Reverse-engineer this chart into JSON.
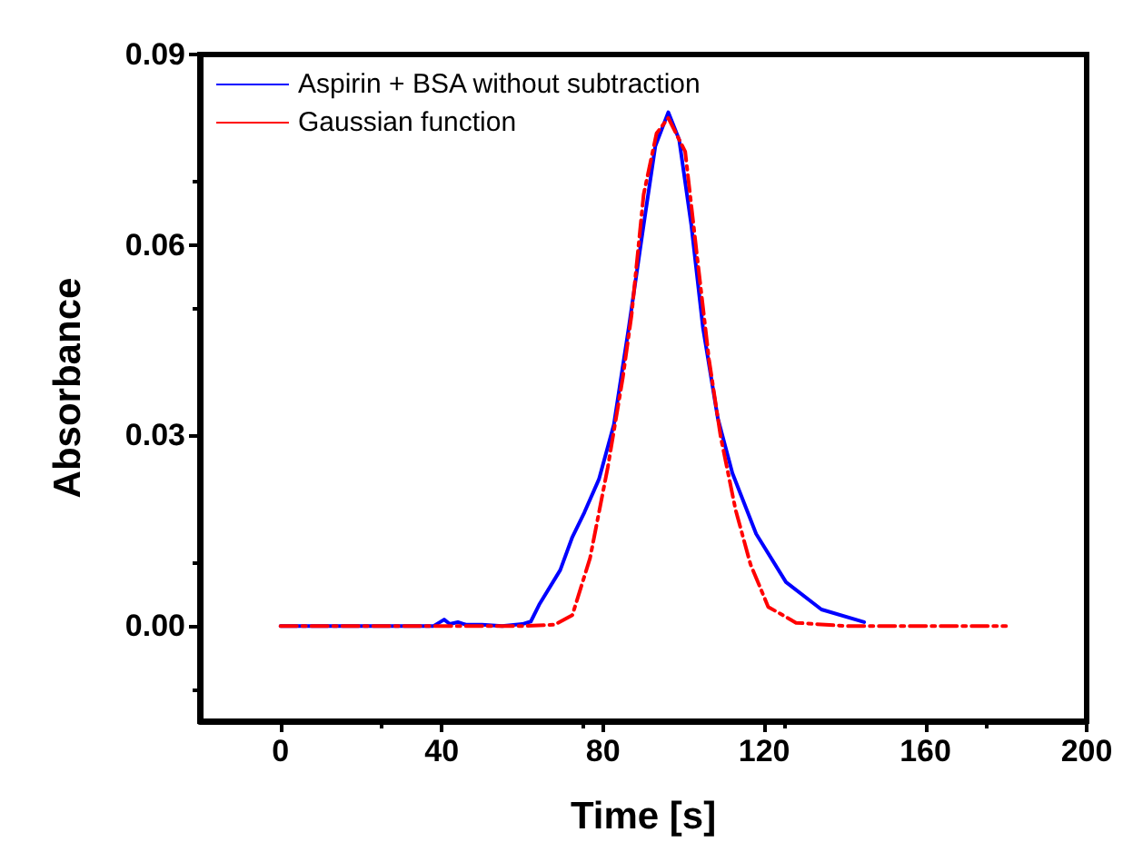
{
  "chart_data": {
    "type": "line",
    "xlabel": "Time [s]",
    "ylabel": "Absorbance",
    "xlim": [
      -20,
      200
    ],
    "xticks": [
      0,
      40,
      80,
      120,
      160,
      200
    ],
    "ylim": [
      -0.015,
      0.09
    ],
    "yticks": [
      {
        "value": 0,
        "label": "0.00"
      },
      {
        "value": 0.03,
        "label": "0.03"
      },
      {
        "value": 0.06,
        "label": "0.06"
      },
      {
        "value": 0.09,
        "label": "0.09"
      }
    ],
    "grid": false,
    "legend": "top left",
    "marker": "none",
    "series": [
      {
        "name": "Aspirin + BSA without subtraction",
        "color": "#0000ff",
        "line_style": "solid",
        "x": [
          0,
          10,
          20,
          30,
          38,
          40.6,
          42,
          44,
          46,
          50,
          55,
          60,
          62.1,
          64.3,
          69.4,
          72.4,
          75.4,
          79.0,
          82.7,
          86.4,
          90.1,
          93.0,
          96.2,
          98.9,
          101.9,
          104.8,
          108.5,
          112.1,
          118.0,
          125.4,
          134.2,
          144.8
        ],
        "values": [
          0,
          0,
          0,
          0,
          0,
          0.001,
          0.0003,
          0.0006,
          0.0002,
          0.0002,
          0,
          0.0003,
          0.0007,
          0.0035,
          0.0088,
          0.014,
          0.0179,
          0.0231,
          0.0317,
          0.047,
          0.0632,
          0.0756,
          0.0809,
          0.0766,
          0.0632,
          0.047,
          0.0327,
          0.0241,
          0.0145,
          0.0069,
          0.0026,
          0.0006
        ]
      },
      {
        "name": "Gaussian function",
        "color": "#ff0000",
        "line_style": "dashed",
        "x": [
          0,
          20,
          40,
          60,
          68,
          72.4,
          76.8,
          81.2,
          84.9,
          87.1,
          90.1,
          93.3,
          96.2,
          100.4,
          103.3,
          106.3,
          109.2,
          112.9,
          116.6,
          121,
          127.9,
          140,
          160,
          180
        ],
        "values": [
          0,
          0,
          0,
          0,
          0.0002,
          0.0017,
          0.0107,
          0.025,
          0.039,
          0.049,
          0.068,
          0.0776,
          0.08,
          0.0747,
          0.0585,
          0.042,
          0.0298,
          0.0183,
          0.0097,
          0.003,
          0.0005,
          0,
          0,
          0
        ]
      }
    ]
  }
}
